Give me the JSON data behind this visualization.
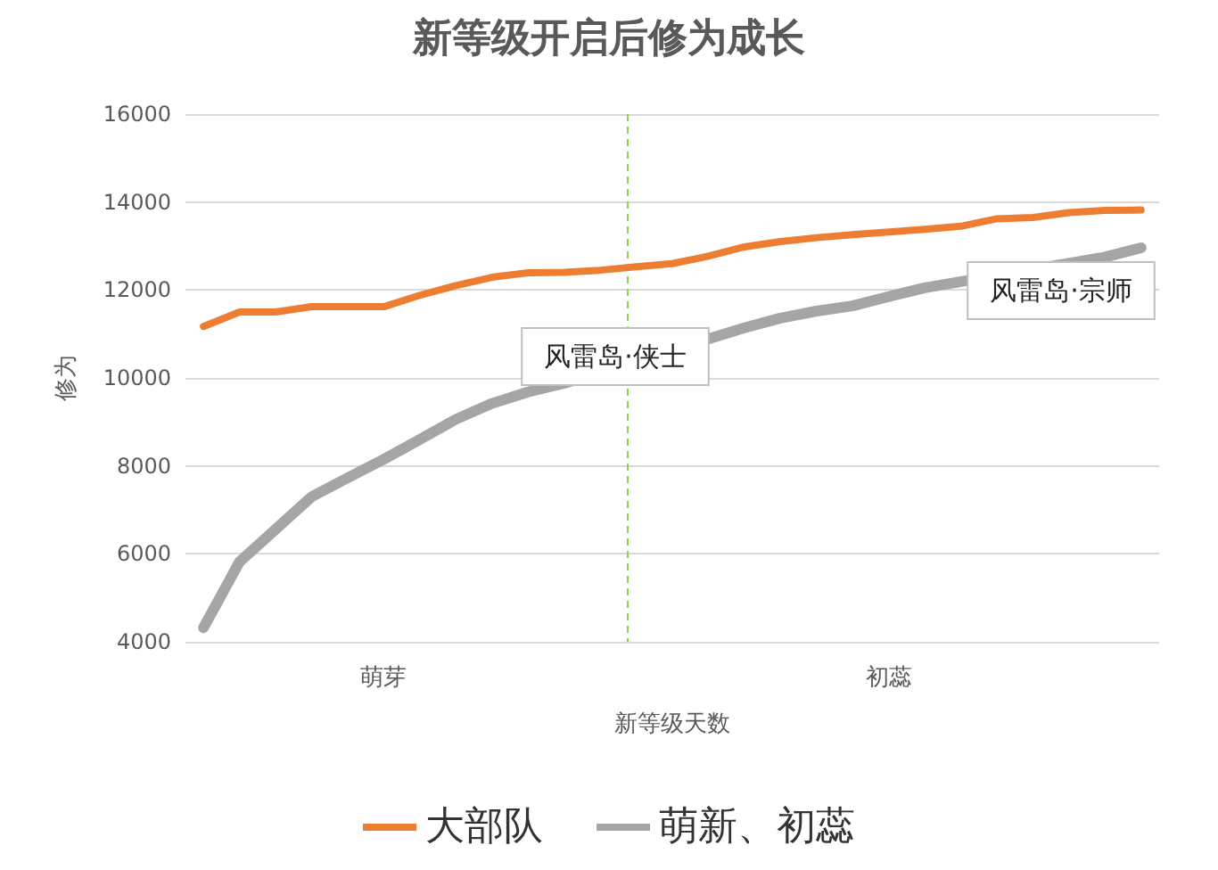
{
  "chart_data": {
    "type": "line",
    "title": "新等级开启后修为成长",
    "xlabel": "新等级天数",
    "ylabel": "修为",
    "categories": [
      null,
      null,
      null,
      null,
      null,
      "萌芽",
      null,
      null,
      null,
      null,
      null,
      null,
      null,
      null,
      null,
      null,
      null,
      null,
      null,
      "初蕊",
      null,
      null,
      null,
      null,
      null,
      null,
      null
    ],
    "series": [
      {
        "name": "大部队",
        "color": "#ed7d31",
        "values": [
          11170,
          11500,
          11500,
          11620,
          11620,
          11620,
          11880,
          12100,
          12290,
          12390,
          12400,
          12450,
          12530,
          12600,
          12770,
          12980,
          13100,
          13190,
          13260,
          13320,
          13380,
          13450,
          13620,
          13650,
          13760,
          13810,
          13820
        ]
      },
      {
        "name": "萌新、初蕊",
        "color": "#a5a5a5",
        "values": [
          4320,
          5820,
          6560,
          7300,
          7730,
          8150,
          8600,
          9060,
          9420,
          9680,
          9880,
          null,
          null,
          null,
          null,
          11140,
          11360,
          11520,
          11640,
          11850,
          12050,
          null,
          null,
          null,
          null,
          12750,
          12960
        ]
      }
    ],
    "ylim": [
      4000,
      16000
    ],
    "yticks": [
      4000,
      6000,
      8000,
      10000,
      12000,
      14000,
      16000
    ],
    "annotations": [
      "风雷岛·侠士",
      "风雷岛·宗师"
    ],
    "grid": "y",
    "legend": "bottom",
    "marker": "none",
    "line_style": "solid"
  }
}
